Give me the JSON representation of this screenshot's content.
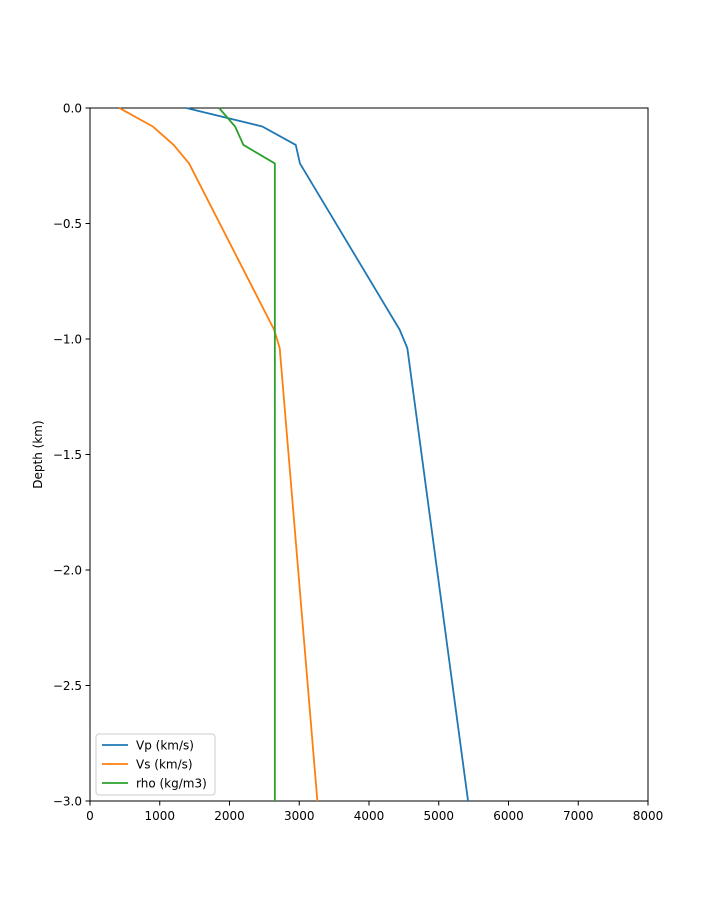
{
  "chart_data": {
    "type": "line",
    "title": "",
    "xlabel": "",
    "ylabel": "Depth (km)",
    "xlim": [
      0,
      8000
    ],
    "ylim": [
      -3.0,
      0.0
    ],
    "xticks": [
      0,
      1000,
      2000,
      3000,
      4000,
      5000,
      6000,
      7000,
      8000
    ],
    "yticks": [
      0.0,
      -0.5,
      -1.0,
      -1.5,
      -2.0,
      -2.5,
      -3.0
    ],
    "xtick_labels": [
      "0",
      "1000",
      "2000",
      "3000",
      "4000",
      "5000",
      "6000",
      "7000",
      "8000"
    ],
    "ytick_labels": [
      "0.0",
      "−0.5",
      "−1.0",
      "−1.5",
      "−2.0",
      "−2.5",
      "−3.0"
    ],
    "grid": false,
    "legend_position": "lower-left",
    "series": [
      {
        "name": "Vp (km/s)",
        "color": "#1f77b4",
        "x": [
          1380,
          2470,
          2950,
          3010,
          4440,
          4550,
          5420
        ],
        "y": [
          0.0,
          -0.08,
          -0.16,
          -0.24,
          -0.96,
          -1.04,
          -3.0
        ]
      },
      {
        "name": "Vs (km/s)",
        "color": "#ff7f0e",
        "x": [
          420,
          900,
          1200,
          1420,
          2640,
          2720,
          3260
        ],
        "y": [
          0.0,
          -0.08,
          -0.16,
          -0.24,
          -0.96,
          -1.04,
          -3.0
        ]
      },
      {
        "name": "rho (kg/m3)",
        "color": "#2ca02c",
        "x": [
          1850,
          2080,
          2200,
          2650,
          2650
        ],
        "y": [
          0.0,
          -0.08,
          -0.16,
          -0.24,
          -3.0
        ]
      }
    ]
  }
}
